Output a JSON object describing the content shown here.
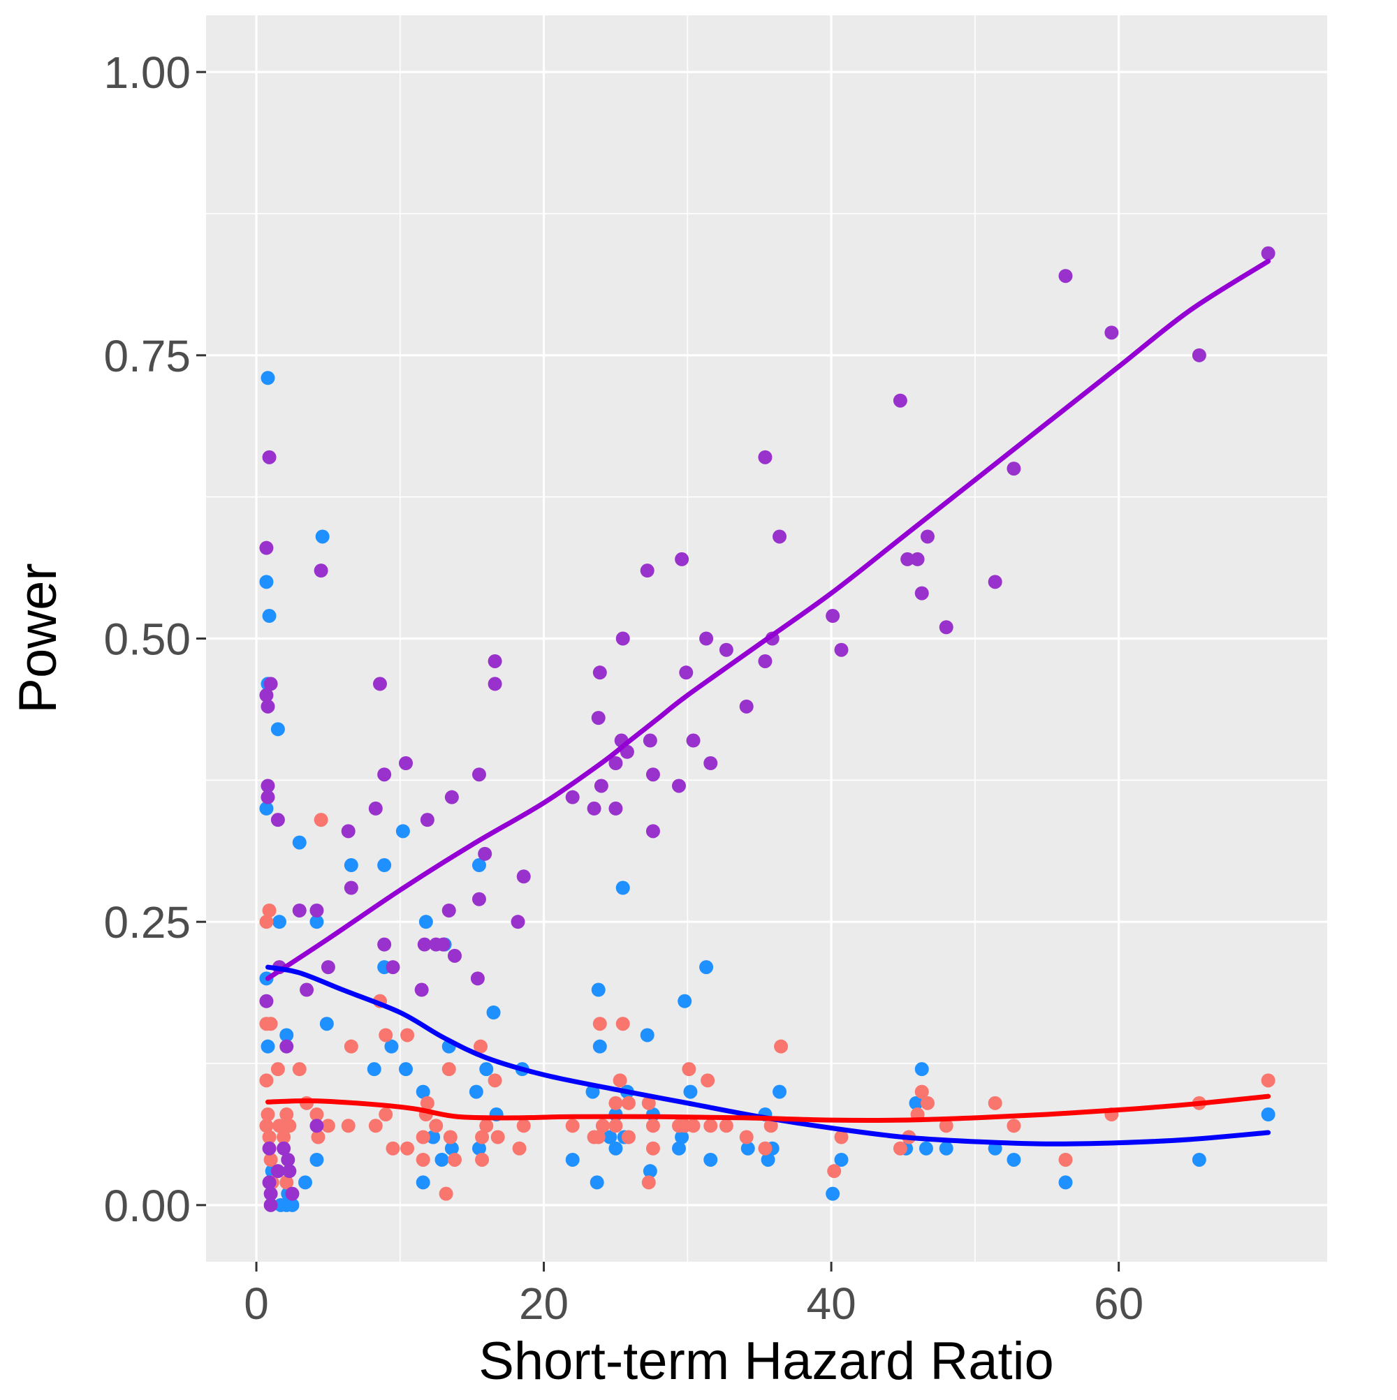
{
  "chart_data": {
    "type": "scatter",
    "xlabel": "Short-term Hazard Ratio",
    "ylabel": "Power",
    "xlim": [
      -3.5,
      74.5
    ],
    "ylim": [
      -0.05,
      1.05
    ],
    "x_ticks": [
      0,
      20,
      40,
      60
    ],
    "x_tick_labels": [
      "0",
      "20",
      "40",
      "60"
    ],
    "y_ticks": [
      0,
      0.25,
      0.5,
      0.75,
      1.0
    ],
    "y_tick_labels": [
      "0.00",
      "0.25",
      "0.50",
      "0.75",
      "1.00"
    ],
    "grid": true,
    "legend": "none",
    "colors": {
      "panel_background": "#ebebeb",
      "grid": "#ffffff",
      "tick_mark": "#333333",
      "blue_points": "#1e90ff",
      "red_points": "#f8766d",
      "purple_points": "#9932cc",
      "blue_line": "#0000ff",
      "red_line": "#ff0000",
      "purple_line": "#9400d3"
    },
    "series": [
      {
        "color_key": "blue",
        "points": [
          [
            0.8,
            0.73
          ],
          [
            0.7,
            0.55
          ],
          [
            0.9,
            0.52
          ],
          [
            0.8,
            0.46
          ],
          [
            1.5,
            0.42
          ],
          [
            0.7,
            0.35
          ],
          [
            1.6,
            0.25
          ],
          [
            0.7,
            0.2
          ],
          [
            0.8,
            0.14
          ],
          [
            1.1,
            0.03
          ],
          [
            1.7,
            0.0
          ],
          [
            2.1,
            0.0
          ],
          [
            2.5,
            0.0
          ],
          [
            2.1,
            0.15
          ],
          [
            2.2,
            0.01
          ],
          [
            3.0,
            0.32
          ],
          [
            3.4,
            0.02
          ],
          [
            4.2,
            0.25
          ],
          [
            4.6,
            0.59
          ],
          [
            4.2,
            0.04
          ],
          [
            4.9,
            0.16
          ],
          [
            6.6,
            0.3
          ],
          [
            8.2,
            0.12
          ],
          [
            8.9,
            0.3
          ],
          [
            8.9,
            0.21
          ],
          [
            9.4,
            0.14
          ],
          [
            10.2,
            0.33
          ],
          [
            10.4,
            0.12
          ],
          [
            11.6,
            0.1
          ],
          [
            11.8,
            0.25
          ],
          [
            11.6,
            0.02
          ],
          [
            12.3,
            0.06
          ],
          [
            12.9,
            0.04
          ],
          [
            13.1,
            0.23
          ],
          [
            13.4,
            0.14
          ],
          [
            13.6,
            0.05
          ],
          [
            15.5,
            0.3
          ],
          [
            15.3,
            0.1
          ],
          [
            15.5,
            0.05
          ],
          [
            16.0,
            0.12
          ],
          [
            16.5,
            0.17
          ],
          [
            16.7,
            0.08
          ],
          [
            18.5,
            0.12
          ],
          [
            22.0,
            0.04
          ],
          [
            23.4,
            0.1
          ],
          [
            23.7,
            0.02
          ],
          [
            23.8,
            0.19
          ],
          [
            23.9,
            0.14
          ],
          [
            24.6,
            0.06
          ],
          [
            25.0,
            0.08
          ],
          [
            25.0,
            0.05
          ],
          [
            25.5,
            0.28
          ],
          [
            25.8,
            0.1
          ],
          [
            25.6,
            0.06
          ],
          [
            27.2,
            0.15
          ],
          [
            27.4,
            0.03
          ],
          [
            27.6,
            0.08
          ],
          [
            29.4,
            0.05
          ],
          [
            29.6,
            0.06
          ],
          [
            29.8,
            0.18
          ],
          [
            30.2,
            0.1
          ],
          [
            31.3,
            0.21
          ],
          [
            31.6,
            0.04
          ],
          [
            34.2,
            0.05
          ],
          [
            35.4,
            0.08
          ],
          [
            35.6,
            0.04
          ],
          [
            35.9,
            0.05
          ],
          [
            36.4,
            0.1
          ],
          [
            40.1,
            0.01
          ],
          [
            40.7,
            0.04
          ],
          [
            45.2,
            0.05
          ],
          [
            45.9,
            0.09
          ],
          [
            46.3,
            0.12
          ],
          [
            46.6,
            0.05
          ],
          [
            48.0,
            0.05
          ],
          [
            51.4,
            0.05
          ],
          [
            52.7,
            0.04
          ],
          [
            56.3,
            0.02
          ],
          [
            65.6,
            0.04
          ],
          [
            70.4,
            0.08
          ]
        ]
      },
      {
        "color_key": "red",
        "points": [
          [
            0.7,
            0.25
          ],
          [
            0.9,
            0.26
          ],
          [
            0.7,
            0.16
          ],
          [
            1.0,
            0.16
          ],
          [
            0.7,
            0.11
          ],
          [
            0.8,
            0.08
          ],
          [
            0.7,
            0.07
          ],
          [
            0.9,
            0.06
          ],
          [
            1.0,
            0.04
          ],
          [
            1.1,
            0.02
          ],
          [
            1.5,
            0.12
          ],
          [
            1.6,
            0.07
          ],
          [
            1.9,
            0.06
          ],
          [
            2.1,
            0.08
          ],
          [
            2.3,
            0.07
          ],
          [
            2.1,
            0.02
          ],
          [
            3.0,
            0.12
          ],
          [
            3.5,
            0.09
          ],
          [
            4.2,
            0.08
          ],
          [
            4.3,
            0.06
          ],
          [
            4.5,
            0.34
          ],
          [
            5.0,
            0.07
          ],
          [
            6.6,
            0.14
          ],
          [
            6.4,
            0.07
          ],
          [
            8.3,
            0.07
          ],
          [
            8.6,
            0.18
          ],
          [
            9.0,
            0.15
          ],
          [
            9.0,
            0.08
          ],
          [
            9.5,
            0.05
          ],
          [
            10.5,
            0.15
          ],
          [
            10.5,
            0.05
          ],
          [
            11.6,
            0.04
          ],
          [
            11.6,
            0.06
          ],
          [
            11.9,
            0.09
          ],
          [
            11.8,
            0.08
          ],
          [
            12.5,
            0.07
          ],
          [
            13.2,
            0.01
          ],
          [
            13.4,
            0.12
          ],
          [
            13.5,
            0.06
          ],
          [
            13.8,
            0.04
          ],
          [
            15.6,
            0.14
          ],
          [
            15.7,
            0.06
          ],
          [
            15.7,
            0.04
          ],
          [
            16.0,
            0.07
          ],
          [
            16.6,
            0.11
          ],
          [
            16.8,
            0.06
          ],
          [
            18.3,
            0.05
          ],
          [
            18.6,
            0.07
          ],
          [
            22.0,
            0.07
          ],
          [
            23.5,
            0.06
          ],
          [
            23.8,
            0.06
          ],
          [
            23.9,
            0.16
          ],
          [
            24.1,
            0.07
          ],
          [
            25.0,
            0.09
          ],
          [
            25.0,
            0.07
          ],
          [
            25.3,
            0.11
          ],
          [
            25.5,
            0.16
          ],
          [
            25.9,
            0.09
          ],
          [
            25.9,
            0.06
          ],
          [
            27.3,
            0.09
          ],
          [
            27.6,
            0.07
          ],
          [
            27.6,
            0.05
          ],
          [
            27.3,
            0.02
          ],
          [
            29.4,
            0.07
          ],
          [
            29.8,
            0.07
          ],
          [
            30.1,
            0.12
          ],
          [
            30.4,
            0.07
          ],
          [
            31.4,
            0.11
          ],
          [
            31.6,
            0.07
          ],
          [
            32.7,
            0.07
          ],
          [
            34.1,
            0.06
          ],
          [
            35.4,
            0.05
          ],
          [
            35.8,
            0.07
          ],
          [
            36.5,
            0.14
          ],
          [
            40.2,
            0.03
          ],
          [
            40.7,
            0.06
          ],
          [
            44.8,
            0.05
          ],
          [
            45.4,
            0.06
          ],
          [
            46.0,
            0.08
          ],
          [
            46.3,
            0.1
          ],
          [
            46.7,
            0.09
          ],
          [
            48.0,
            0.07
          ],
          [
            51.4,
            0.09
          ],
          [
            52.7,
            0.07
          ],
          [
            56.3,
            0.04
          ],
          [
            59.5,
            0.08
          ],
          [
            65.6,
            0.09
          ],
          [
            70.4,
            0.11
          ]
        ]
      },
      {
        "color_key": "purple",
        "points": [
          [
            0.9,
            0.66
          ],
          [
            0.7,
            0.58
          ],
          [
            1.0,
            0.46
          ],
          [
            0.7,
            0.45
          ],
          [
            0.8,
            0.44
          ],
          [
            0.8,
            0.37
          ],
          [
            0.8,
            0.36
          ],
          [
            1.5,
            0.34
          ],
          [
            1.6,
            0.21
          ],
          [
            0.7,
            0.18
          ],
          [
            0.9,
            0.05
          ],
          [
            0.9,
            0.02
          ],
          [
            1.0,
            0.01
          ],
          [
            1.0,
            0.0
          ],
          [
            1.5,
            0.03
          ],
          [
            1.9,
            0.05
          ],
          [
            2.1,
            0.14
          ],
          [
            2.2,
            0.04
          ],
          [
            2.3,
            0.03
          ],
          [
            2.5,
            0.01
          ],
          [
            3.0,
            0.26
          ],
          [
            3.5,
            0.19
          ],
          [
            4.2,
            0.26
          ],
          [
            4.2,
            0.07
          ],
          [
            4.5,
            0.56
          ],
          [
            5.0,
            0.21
          ],
          [
            6.4,
            0.33
          ],
          [
            6.6,
            0.28
          ],
          [
            8.3,
            0.35
          ],
          [
            8.6,
            0.46
          ],
          [
            8.9,
            0.38
          ],
          [
            8.9,
            0.23
          ],
          [
            9.5,
            0.21
          ],
          [
            10.4,
            0.39
          ],
          [
            11.5,
            0.19
          ],
          [
            11.7,
            0.23
          ],
          [
            11.9,
            0.34
          ],
          [
            12.5,
            0.23
          ],
          [
            13.0,
            0.23
          ],
          [
            13.4,
            0.26
          ],
          [
            13.6,
            0.36
          ],
          [
            13.8,
            0.22
          ],
          [
            15.5,
            0.38
          ],
          [
            15.5,
            0.27
          ],
          [
            15.4,
            0.2
          ],
          [
            15.9,
            0.31
          ],
          [
            16.6,
            0.48
          ],
          [
            16.6,
            0.46
          ],
          [
            18.2,
            0.25
          ],
          [
            18.6,
            0.29
          ],
          [
            22.0,
            0.36
          ],
          [
            23.5,
            0.35
          ],
          [
            23.8,
            0.43
          ],
          [
            23.9,
            0.47
          ],
          [
            24.0,
            0.37
          ],
          [
            25.0,
            0.39
          ],
          [
            25.0,
            0.35
          ],
          [
            25.4,
            0.41
          ],
          [
            25.5,
            0.5
          ],
          [
            25.8,
            0.4
          ],
          [
            27.2,
            0.56
          ],
          [
            27.4,
            0.41
          ],
          [
            27.6,
            0.38
          ],
          [
            27.6,
            0.33
          ],
          [
            29.4,
            0.37
          ],
          [
            29.6,
            0.57
          ],
          [
            29.9,
            0.47
          ],
          [
            30.4,
            0.41
          ],
          [
            31.3,
            0.5
          ],
          [
            31.6,
            0.39
          ],
          [
            32.7,
            0.49
          ],
          [
            34.1,
            0.44
          ],
          [
            35.4,
            0.66
          ],
          [
            35.4,
            0.48
          ],
          [
            35.9,
            0.5
          ],
          [
            36.4,
            0.59
          ],
          [
            40.1,
            0.52
          ],
          [
            40.7,
            0.49
          ],
          [
            44.8,
            0.71
          ],
          [
            45.3,
            0.57
          ],
          [
            46.0,
            0.57
          ],
          [
            46.3,
            0.54
          ],
          [
            46.7,
            0.59
          ],
          [
            48.0,
            0.51
          ],
          [
            51.4,
            0.55
          ],
          [
            52.7,
            0.65
          ],
          [
            56.3,
            0.82
          ],
          [
            59.5,
            0.77
          ],
          [
            65.6,
            0.75
          ],
          [
            70.4,
            0.84
          ]
        ]
      }
    ],
    "smooth_lines": [
      {
        "color_key": "purple",
        "points": [
          [
            0.8,
            0.2
          ],
          [
            5,
            0.235
          ],
          [
            10,
            0.278
          ],
          [
            15,
            0.318
          ],
          [
            20,
            0.355
          ],
          [
            24,
            0.39
          ],
          [
            26,
            0.41
          ],
          [
            28,
            0.43
          ],
          [
            30,
            0.45
          ],
          [
            35,
            0.495
          ],
          [
            40,
            0.54
          ],
          [
            45,
            0.59
          ],
          [
            50,
            0.64
          ],
          [
            55,
            0.69
          ],
          [
            60,
            0.74
          ],
          [
            65,
            0.79
          ],
          [
            70.4,
            0.833
          ]
        ]
      },
      {
        "color_key": "blue",
        "points": [
          [
            0.8,
            0.21
          ],
          [
            3,
            0.205
          ],
          [
            6,
            0.19
          ],
          [
            10,
            0.17
          ],
          [
            13,
            0.148
          ],
          [
            16,
            0.13
          ],
          [
            20,
            0.115
          ],
          [
            25,
            0.102
          ],
          [
            30,
            0.09
          ],
          [
            35,
            0.078
          ],
          [
            40,
            0.068
          ],
          [
            45,
            0.06
          ],
          [
            50,
            0.056
          ],
          [
            55,
            0.054
          ],
          [
            60,
            0.055
          ],
          [
            65,
            0.058
          ],
          [
            70.4,
            0.064
          ]
        ]
      },
      {
        "color_key": "red",
        "points": [
          [
            0.8,
            0.091
          ],
          [
            4,
            0.092
          ],
          [
            8,
            0.089
          ],
          [
            11,
            0.085
          ],
          [
            14,
            0.078
          ],
          [
            18,
            0.077
          ],
          [
            22,
            0.078
          ],
          [
            28,
            0.078
          ],
          [
            34,
            0.077
          ],
          [
            40,
            0.075
          ],
          [
            45,
            0.075
          ],
          [
            50,
            0.077
          ],
          [
            55,
            0.08
          ],
          [
            60,
            0.084
          ],
          [
            65,
            0.089
          ],
          [
            70.4,
            0.096
          ]
        ]
      }
    ]
  }
}
